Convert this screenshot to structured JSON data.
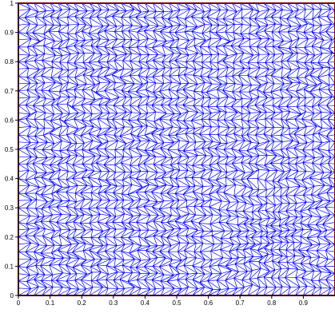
{
  "chart_data": {
    "type": "mesh",
    "description_visible": "triangular finite element mesh on unit square",
    "xlim": [
      0,
      1
    ],
    "ylim": [
      0,
      1
    ],
    "x_ticks": [
      "0",
      "0.1",
      "0.2",
      "0.3",
      "0.4",
      "0.5",
      "0.6",
      "0.7",
      "0.8",
      "0.9"
    ],
    "x_tick_values": [
      0,
      0.1,
      0.2,
      0.3,
      0.4,
      0.5,
      0.6,
      0.7,
      0.8,
      0.9
    ],
    "y_ticks": [
      "0",
      "0.1",
      "0.2",
      "0.3",
      "0.4",
      "0.5",
      "0.6",
      "0.7",
      "0.8",
      "0.9",
      "1"
    ],
    "y_tick_values": [
      0,
      0.1,
      0.2,
      0.3,
      0.4,
      0.5,
      0.6,
      0.7,
      0.8,
      0.9,
      1
    ],
    "mesh_resolution": 40,
    "refined_region": {
      "x": [
        0.65,
        0.95
      ],
      "y": [
        0.08,
        0.32
      ]
    },
    "colors": {
      "edges": "#0000ff",
      "boundary": "#800000",
      "axes": "#000000",
      "background": "#ffffff"
    }
  }
}
